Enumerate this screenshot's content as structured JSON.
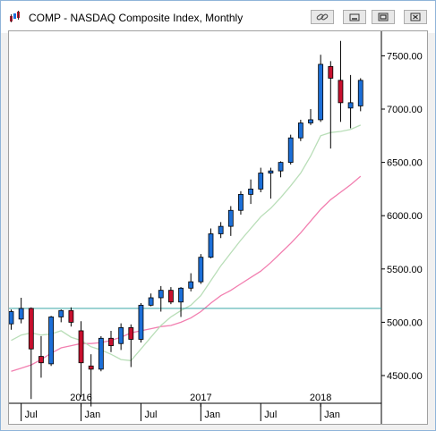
{
  "window": {
    "title": "COMP - NASDAQ Composite Index, Monthly",
    "buttons": [
      {
        "name": "link-button",
        "icon": "link-icon"
      },
      {
        "name": "minimize-button",
        "icon": "minimize-icon"
      },
      {
        "name": "restore-button",
        "icon": "restore-icon"
      },
      {
        "name": "close-button",
        "icon": "close-icon"
      }
    ]
  },
  "colors": {
    "up": "#1c6fd8",
    "down": "#c8102e",
    "ma_short": "#b9deb8",
    "ma_long": "#f27fb0",
    "reference": "#3aa6a6"
  },
  "chart_data": {
    "type": "candlestick",
    "title": "COMP - NASDAQ Composite Index, Monthly",
    "ylim": [
      4240,
      7730
    ],
    "y_ticks": [
      4500,
      5000,
      5500,
      6000,
      6500,
      7000,
      7500
    ],
    "y_tick_labels": [
      "4500.00",
      "5000.00",
      "5500.00",
      "6000.00",
      "6500.00",
      "7000.00",
      "7500.00"
    ],
    "year_labels": [
      {
        "label": "2016",
        "index": 7
      },
      {
        "label": "2017",
        "index": 19
      },
      {
        "label": "2018",
        "index": 31
      }
    ],
    "month_labels": [
      {
        "label": "Jul",
        "index": 1
      },
      {
        "label": "Jan",
        "index": 7
      },
      {
        "label": "Jul",
        "index": 13
      },
      {
        "label": "Jan",
        "index": 19
      },
      {
        "label": "Jul",
        "index": 25
      },
      {
        "label": "Jan",
        "index": 31
      }
    ],
    "reference_level": 5130,
    "candles": [
      {
        "month": "2015-06",
        "open": 4985,
        "high": 5120,
        "low": 4930,
        "close": 5100
      },
      {
        "month": "2015-07",
        "open": 5030,
        "high": 5230,
        "low": 4990,
        "close": 5130
      },
      {
        "month": "2015-08",
        "open": 5130,
        "high": 5140,
        "low": 4280,
        "close": 4750
      },
      {
        "month": "2015-09",
        "open": 4680,
        "high": 4870,
        "low": 4480,
        "close": 4620
      },
      {
        "month": "2015-10",
        "open": 4610,
        "high": 5060,
        "low": 4590,
        "close": 5050
      },
      {
        "month": "2015-11",
        "open": 5050,
        "high": 5120,
        "low": 5000,
        "close": 5110
      },
      {
        "month": "2015-12",
        "open": 5110,
        "high": 5140,
        "low": 4960,
        "close": 5000
      },
      {
        "month": "2016-01",
        "open": 4920,
        "high": 5010,
        "low": 4300,
        "close": 4620
      },
      {
        "month": "2016-02",
        "open": 4590,
        "high": 4700,
        "low": 4210,
        "close": 4560
      },
      {
        "month": "2016-03",
        "open": 4560,
        "high": 4870,
        "low": 4540,
        "close": 4850
      },
      {
        "month": "2016-04",
        "open": 4850,
        "high": 4920,
        "low": 4720,
        "close": 4780
      },
      {
        "month": "2016-05",
        "open": 4800,
        "high": 4990,
        "low": 4740,
        "close": 4950
      },
      {
        "month": "2016-06",
        "open": 4950,
        "high": 4980,
        "low": 4580,
        "close": 4840
      },
      {
        "month": "2016-07",
        "open": 4840,
        "high": 5180,
        "low": 4810,
        "close": 5160
      },
      {
        "month": "2016-08",
        "open": 5160,
        "high": 5270,
        "low": 5150,
        "close": 5230
      },
      {
        "month": "2016-09",
        "open": 5230,
        "high": 5340,
        "low": 5100,
        "close": 5300
      },
      {
        "month": "2016-10",
        "open": 5300,
        "high": 5330,
        "low": 5170,
        "close": 5190
      },
      {
        "month": "2016-11",
        "open": 5190,
        "high": 5330,
        "low": 5050,
        "close": 5320
      },
      {
        "month": "2016-12",
        "open": 5320,
        "high": 5460,
        "low": 5290,
        "close": 5380
      },
      {
        "month": "2017-01",
        "open": 5380,
        "high": 5640,
        "low": 5360,
        "close": 5610
      },
      {
        "month": "2017-02",
        "open": 5610,
        "high": 5880,
        "low": 5600,
        "close": 5830
      },
      {
        "month": "2017-03",
        "open": 5830,
        "high": 5940,
        "low": 5790,
        "close": 5900
      },
      {
        "month": "2017-04",
        "open": 5900,
        "high": 6090,
        "low": 5810,
        "close": 6050
      },
      {
        "month": "2017-05",
        "open": 6050,
        "high": 6230,
        "low": 6010,
        "close": 6200
      },
      {
        "month": "2017-06",
        "open": 6200,
        "high": 6340,
        "low": 6110,
        "close": 6250
      },
      {
        "month": "2017-07",
        "open": 6250,
        "high": 6450,
        "low": 6220,
        "close": 6400
      },
      {
        "month": "2017-08",
        "open": 6400,
        "high": 6450,
        "low": 6160,
        "close": 6420
      },
      {
        "month": "2017-09",
        "open": 6420,
        "high": 6510,
        "low": 6360,
        "close": 6500
      },
      {
        "month": "2017-10",
        "open": 6500,
        "high": 6760,
        "low": 6480,
        "close": 6730
      },
      {
        "month": "2017-11",
        "open": 6730,
        "high": 6900,
        "low": 6700,
        "close": 6870
      },
      {
        "month": "2017-12",
        "open": 6870,
        "high": 7000,
        "low": 6850,
        "close": 6900
      },
      {
        "month": "2018-01",
        "open": 6900,
        "high": 7510,
        "low": 6880,
        "close": 7420
      },
      {
        "month": "2018-02",
        "open": 7400,
        "high": 7450,
        "low": 6630,
        "close": 7290
      },
      {
        "month": "2018-03",
        "open": 7270,
        "high": 7640,
        "low": 6880,
        "close": 7060
      },
      {
        "month": "2018-04",
        "open": 7010,
        "high": 7320,
        "low": 6820,
        "close": 7060
      },
      {
        "month": "2018-05",
        "open": 7030,
        "high": 7290,
        "low": 6980,
        "close": 7270
      }
    ],
    "ma_short": [
      {
        "index": 0,
        "value": 4830
      },
      {
        "index": 1,
        "value": 4880
      },
      {
        "index": 2,
        "value": 4900
      },
      {
        "index": 3,
        "value": 4880
      },
      {
        "index": 4,
        "value": 4890
      },
      {
        "index": 5,
        "value": 4920
      },
      {
        "index": 6,
        "value": 4860
      },
      {
        "index": 7,
        "value": 4830
      },
      {
        "index": 8,
        "value": 4770
      },
      {
        "index": 9,
        "value": 4740
      },
      {
        "index": 10,
        "value": 4700
      },
      {
        "index": 11,
        "value": 4650
      },
      {
        "index": 12,
        "value": 4640
      },
      {
        "index": 13,
        "value": 4750
      },
      {
        "index": 14,
        "value": 4860
      },
      {
        "index": 15,
        "value": 4970
      },
      {
        "index": 16,
        "value": 5050
      },
      {
        "index": 17,
        "value": 5110
      },
      {
        "index": 18,
        "value": 5160
      },
      {
        "index": 19,
        "value": 5250
      },
      {
        "index": 20,
        "value": 5390
      },
      {
        "index": 21,
        "value": 5530
      },
      {
        "index": 22,
        "value": 5650
      },
      {
        "index": 23,
        "value": 5770
      },
      {
        "index": 24,
        "value": 5880
      },
      {
        "index": 25,
        "value": 5990
      },
      {
        "index": 26,
        "value": 6070
      },
      {
        "index": 27,
        "value": 6170
      },
      {
        "index": 28,
        "value": 6280
      },
      {
        "index": 29,
        "value": 6400
      },
      {
        "index": 30,
        "value": 6560
      },
      {
        "index": 31,
        "value": 6750
      },
      {
        "index": 32,
        "value": 6780
      },
      {
        "index": 33,
        "value": 6790
      },
      {
        "index": 34,
        "value": 6810
      },
      {
        "index": 35,
        "value": 6850
      }
    ],
    "ma_long": [
      {
        "index": 0,
        "value": 4540
      },
      {
        "index": 1,
        "value": 4570
      },
      {
        "index": 2,
        "value": 4600
      },
      {
        "index": 3,
        "value": 4650
      },
      {
        "index": 4,
        "value": 4710
      },
      {
        "index": 5,
        "value": 4760
      },
      {
        "index": 6,
        "value": 4780
      },
      {
        "index": 7,
        "value": 4800
      },
      {
        "index": 8,
        "value": 4800
      },
      {
        "index": 9,
        "value": 4810
      },
      {
        "index": 10,
        "value": 4830
      },
      {
        "index": 11,
        "value": 4860
      },
      {
        "index": 12,
        "value": 4900
      },
      {
        "index": 13,
        "value": 4920
      },
      {
        "index": 14,
        "value": 4940
      },
      {
        "index": 15,
        "value": 4960
      },
      {
        "index": 16,
        "value": 4970
      },
      {
        "index": 17,
        "value": 5000
      },
      {
        "index": 18,
        "value": 5040
      },
      {
        "index": 19,
        "value": 5100
      },
      {
        "index": 20,
        "value": 5180
      },
      {
        "index": 21,
        "value": 5250
      },
      {
        "index": 22,
        "value": 5300
      },
      {
        "index": 23,
        "value": 5360
      },
      {
        "index": 24,
        "value": 5420
      },
      {
        "index": 25,
        "value": 5480
      },
      {
        "index": 26,
        "value": 5560
      },
      {
        "index": 27,
        "value": 5650
      },
      {
        "index": 28,
        "value": 5740
      },
      {
        "index": 29,
        "value": 5840
      },
      {
        "index": 30,
        "value": 5950
      },
      {
        "index": 31,
        "value": 6060
      },
      {
        "index": 32,
        "value": 6150
      },
      {
        "index": 33,
        "value": 6220
      },
      {
        "index": 34,
        "value": 6290
      },
      {
        "index": 35,
        "value": 6370
      }
    ]
  }
}
